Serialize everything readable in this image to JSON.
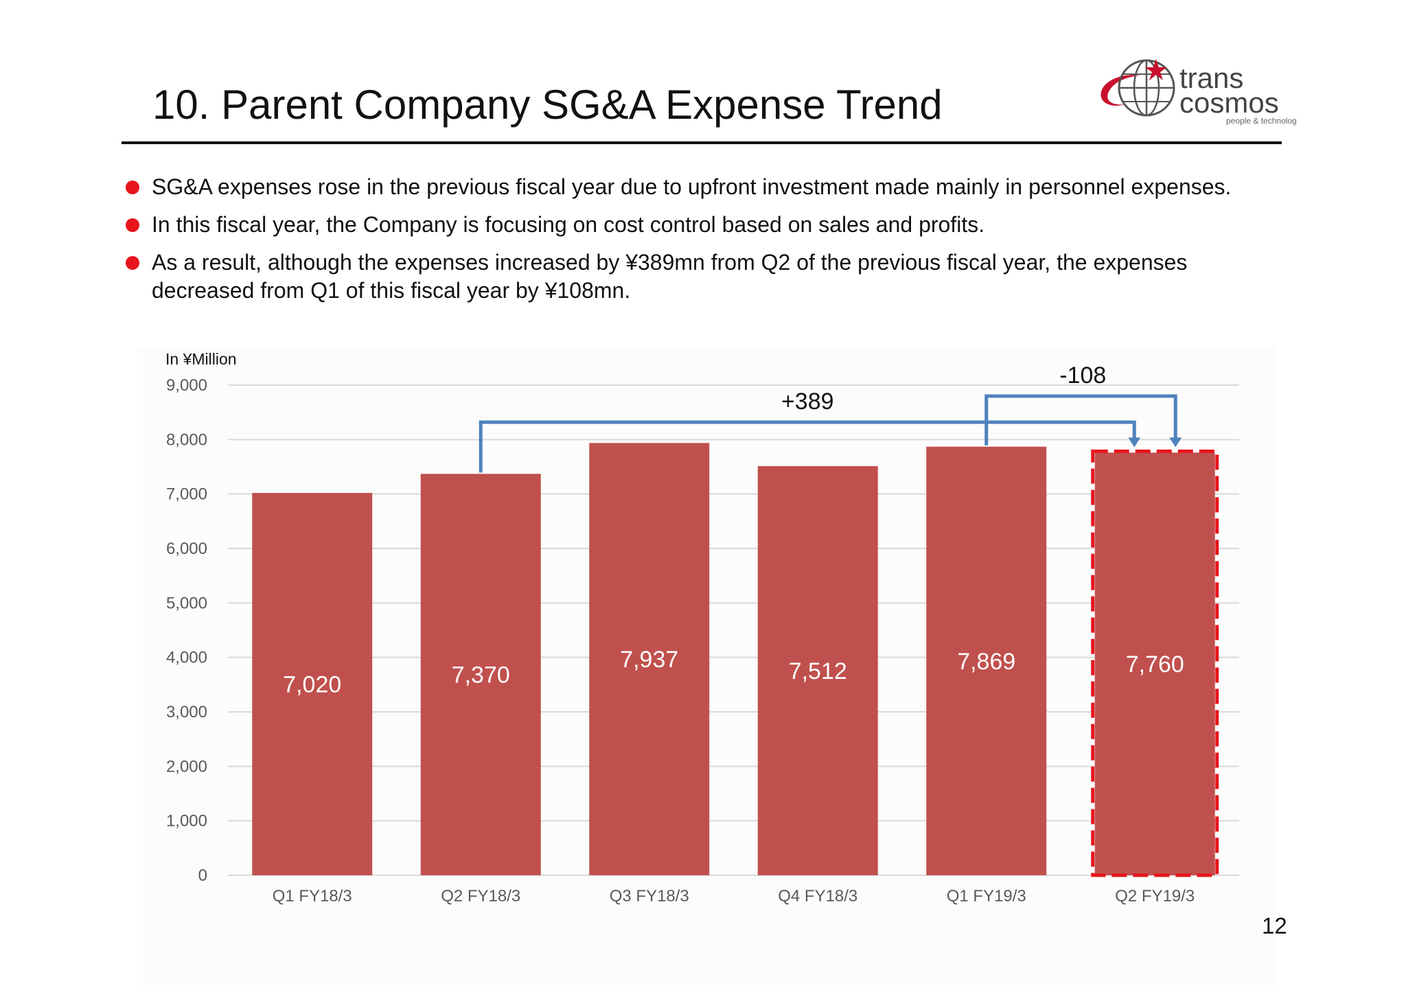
{
  "header": {
    "title": "10. Parent Company SG&A Expense Trend",
    "logo": {
      "line1": "trans",
      "line2": "cosmos",
      "tagline": "people & technology",
      "icon": "globe-star-icon"
    }
  },
  "bullets": [
    "SG&A expenses rose in the previous fiscal year due to upfront investment made mainly in personnel expenses.",
    "In this fiscal year, the Company is focusing on cost control based on sales and profits.",
    "As a result, although the expenses increased by ¥389mn from Q2 of the previous fiscal year, the expenses decreased from Q1 of this fiscal year by ¥108mn."
  ],
  "colors": {
    "bar": "#c0504d",
    "bullet": "#e8141c",
    "connector": "#4f81bd",
    "highlight": "#e8141c",
    "grid": "#d9d9d9",
    "axis_text": "#595959"
  },
  "chart_data": {
    "type": "bar",
    "unit_label": "In ¥Million",
    "categories": [
      "Q1 FY18/3",
      "Q2 FY18/3",
      "Q3 FY18/3",
      "Q4 FY18/3",
      "Q1 FY19/3",
      "Q2 FY19/3"
    ],
    "values": [
      7020,
      7370,
      7937,
      7512,
      7869,
      7760
    ],
    "value_labels": [
      "7,020",
      "7,370",
      "7,937",
      "7,512",
      "7,869",
      "7,760"
    ],
    "ylim": [
      0,
      9000
    ],
    "yticks": [
      0,
      1000,
      2000,
      3000,
      4000,
      5000,
      6000,
      7000,
      8000,
      9000
    ],
    "ytick_labels": [
      "0",
      "1,000",
      "2,000",
      "3,000",
      "4,000",
      "5,000",
      "6,000",
      "7,000",
      "8,000",
      "9,000"
    ],
    "grid": true,
    "highlighted_category": "Q2 FY19/3",
    "annotations": [
      {
        "label": "+389",
        "from": "Q2 FY18/3",
        "to": "Q2 FY19/3"
      },
      {
        "label": "-108",
        "from": "Q1 FY19/3",
        "to": "Q2 FY19/3"
      }
    ]
  },
  "page_number": "12"
}
